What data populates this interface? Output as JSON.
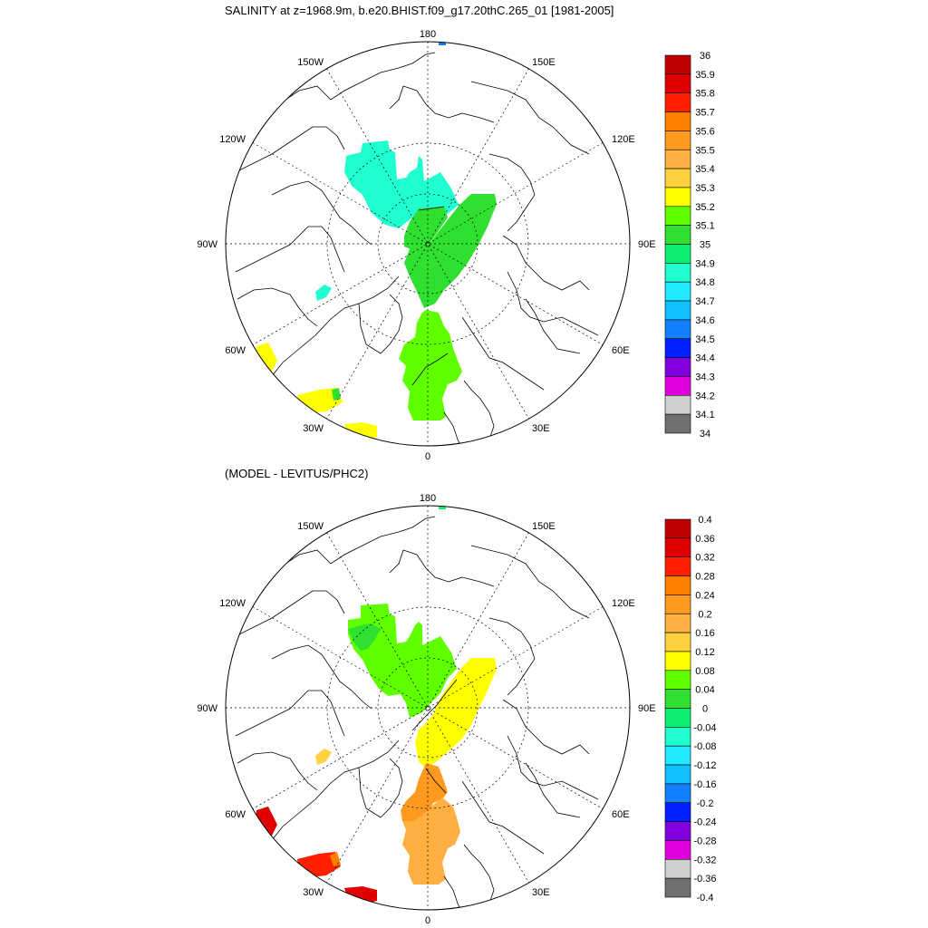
{
  "title": "SALINITY at z=1968.9m, b.e20.BHIST.f09_g17.20thC.265_01 [1981-2005]",
  "subtitle": "(MODEL - LEVITUS/PHC2)",
  "lon_labels": {
    "top": "180",
    "bottom": "0",
    "left": "90W",
    "right": "90E",
    "upper_left_1": "150W",
    "upper_left_2": "120W",
    "upper_right_1": "150E",
    "upper_right_2": "120E",
    "lower_left_1": "60W",
    "lower_left_2": "30W",
    "lower_right_1": "60E",
    "lower_right_2": "30E"
  },
  "colorbar1": {
    "labels": [
      "36",
      "35.9",
      "35.8",
      "35.7",
      "35.6",
      "35.5",
      "35.4",
      "35.3",
      "35.2",
      "35.1",
      "35",
      "34.9",
      "34.8",
      "34.7",
      "34.6",
      "34.5",
      "34.4",
      "34.3",
      "34.2",
      "34.1",
      "34"
    ],
    "colors": [
      "#c00000",
      "#e00000",
      "#ff2000",
      "#ff8000",
      "#ff9a20",
      "#ffb040",
      "#ffd040",
      "#ffff00",
      "#60ff00",
      "#30e030",
      "#10f070",
      "#20ffd0",
      "#20e8ff",
      "#10c0ff",
      "#1080ff",
      "#0020ff",
      "#8000e0",
      "#e000e0",
      "#d0d0d0",
      "#707070"
    ]
  },
  "colorbar2": {
    "labels": [
      "0.4",
      "0.36",
      "0.32",
      "0.28",
      "0.24",
      "0.2",
      "0.16",
      "0.12",
      "0.08",
      "0.04",
      "0",
      "-0.04",
      "-0.08",
      "-0.12",
      "-0.16",
      "-0.2",
      "-0.24",
      "-0.28",
      "-0.32",
      "-0.36",
      "-0.4"
    ],
    "colors": [
      "#c00000",
      "#e00000",
      "#ff2000",
      "#ff8000",
      "#ff9a20",
      "#ffb040",
      "#ffd040",
      "#ffff00",
      "#60ff00",
      "#30e030",
      "#10f070",
      "#20ffd0",
      "#20e8ff",
      "#10c0ff",
      "#1080ff",
      "#0020ff",
      "#8000e0",
      "#e000e0",
      "#d0d0d0",
      "#707070"
    ]
  },
  "map1_regions": [
    {
      "name": "canada-basin",
      "color": "#20ffd0"
    },
    {
      "name": "eurasian-basin-upper",
      "color": "#30e030"
    },
    {
      "name": "eurasian-basin-lower",
      "color": "#30e030"
    },
    {
      "name": "fram-strait",
      "color": "#60ff00"
    },
    {
      "name": "nordic-seas",
      "color": "#60ff00"
    },
    {
      "name": "labrador-patch",
      "color": "#ffff00"
    },
    {
      "name": "atlantic-patch-1",
      "color": "#ffff00"
    },
    {
      "name": "atlantic-patch-2",
      "color": "#ffff00"
    },
    {
      "name": "baffin-spot",
      "color": "#20ffd0"
    },
    {
      "name": "bering-spot",
      "color": "#1080ff"
    }
  ],
  "map2_regions": [
    {
      "name": "canada-basin",
      "color": "#60ff00"
    },
    {
      "name": "canada-basin-inner",
      "color": "#30e030"
    },
    {
      "name": "eurasian-basin",
      "color": "#ffff00"
    },
    {
      "name": "fram-strait",
      "color": "#ff9a20"
    },
    {
      "name": "nordic-seas",
      "color": "#ffb040"
    },
    {
      "name": "labrador-patch",
      "color": "#e00000"
    },
    {
      "name": "atlantic-patch-1",
      "color": "#ff2000"
    },
    {
      "name": "atlantic-patch-2",
      "color": "#e00000"
    },
    {
      "name": "baffin-spot",
      "color": "#ffd040"
    },
    {
      "name": "bering-spot",
      "color": "#10f070"
    }
  ]
}
